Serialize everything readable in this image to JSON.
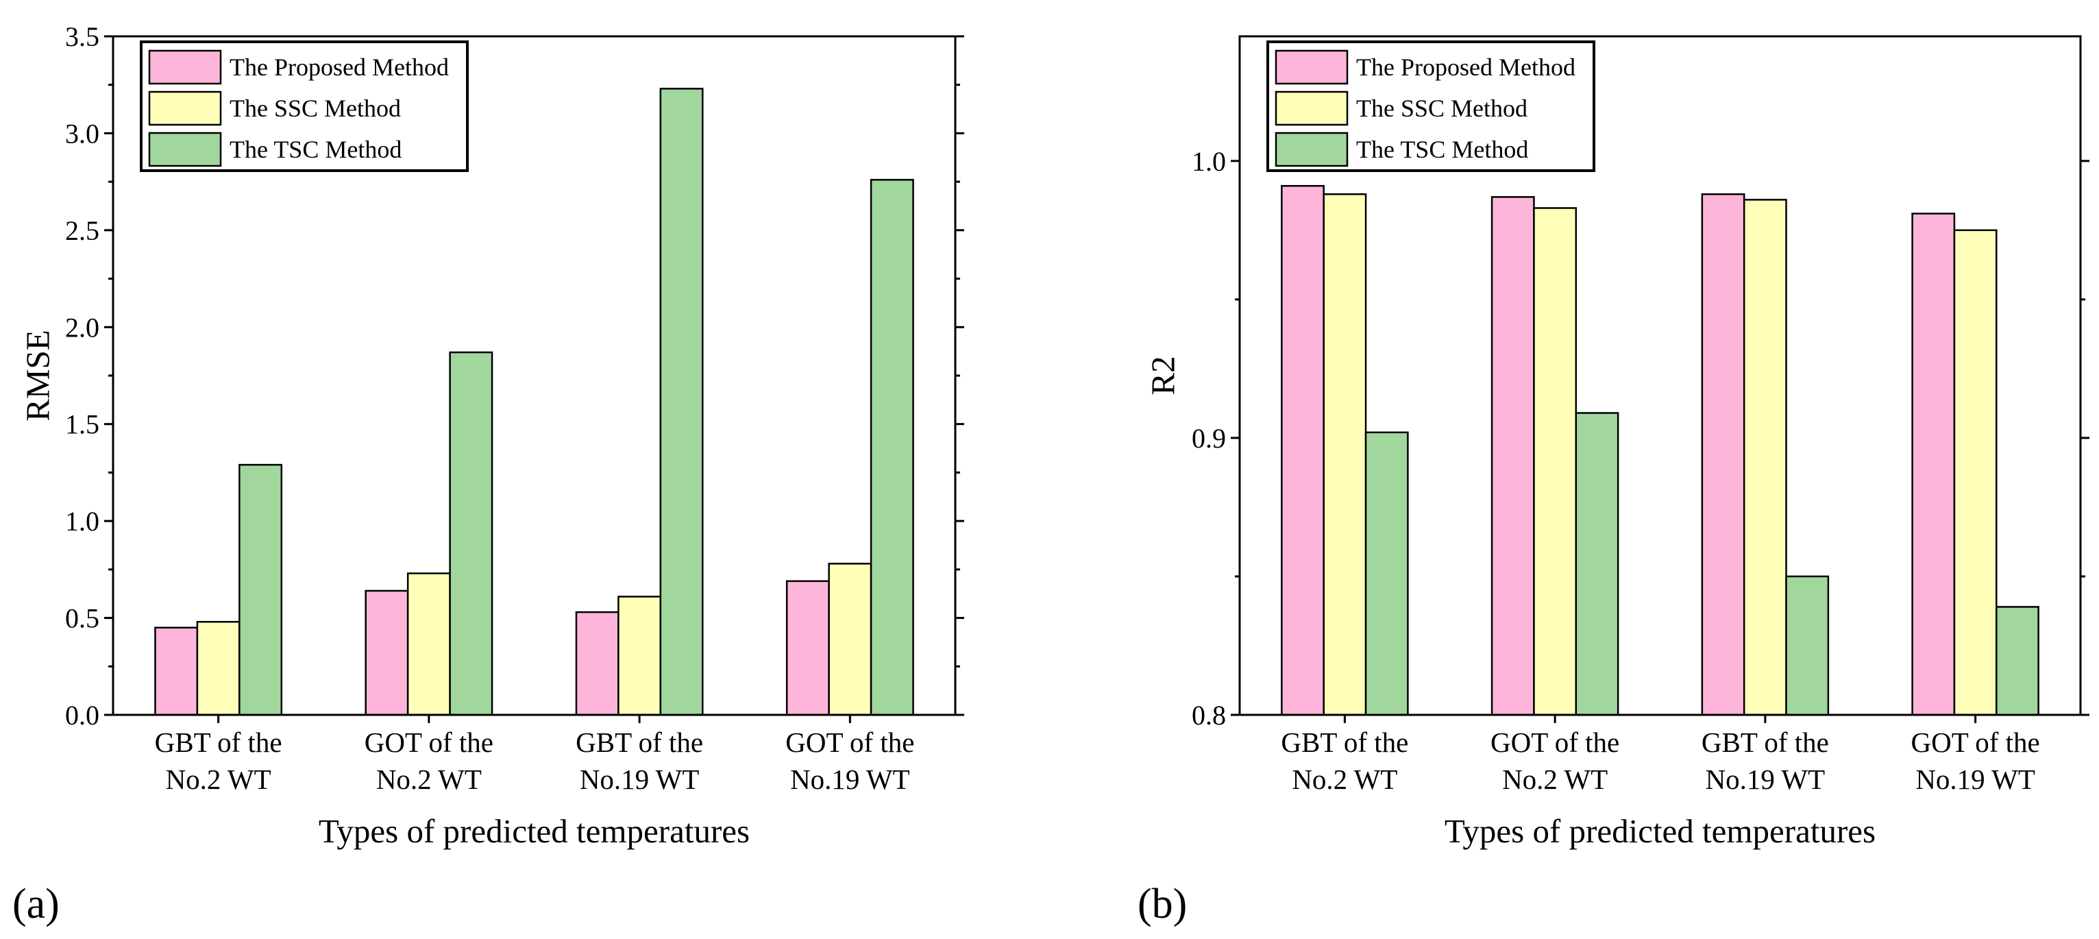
{
  "chart_data": [
    {
      "panel_label": "(a)",
      "type": "bar",
      "xlabel": "Types of predicted temperatures",
      "ylabel": "RMSE",
      "categories": [
        [
          "GBT of the",
          "No.2 WT"
        ],
        [
          "GOT of the",
          "No.2 WT"
        ],
        [
          "GBT of the",
          "No.19 WT"
        ],
        [
          "GOT of the",
          "No.19 WT"
        ]
      ],
      "series": [
        {
          "name": "The Proposed Method",
          "color": "#FDB5DA",
          "values": [
            0.45,
            0.64,
            0.53,
            0.69
          ]
        },
        {
          "name": "The SSC Method",
          "color": "#FFFFBA",
          "values": [
            0.48,
            0.73,
            0.61,
            0.78
          ]
        },
        {
          "name": "The TSC Method",
          "color": "#A1D79D",
          "values": [
            1.29,
            1.87,
            3.23,
            2.76
          ]
        }
      ],
      "ylim": [
        0,
        3.5
      ],
      "yticks": [
        0,
        0.5,
        1.0,
        1.5,
        2.0,
        2.5,
        3.0,
        3.5
      ],
      "ytick_labels": [
        "0.0",
        "0.5",
        "1.0",
        "1.5",
        "2.0",
        "2.5",
        "3.0",
        "3.5"
      ],
      "yminor_step": 0.25,
      "legend": "top-left",
      "grid": false
    },
    {
      "panel_label": "(b)",
      "type": "bar",
      "xlabel": "Types of predicted temperatures",
      "ylabel": "R2",
      "categories": [
        [
          "GBT of the",
          "No.2 WT"
        ],
        [
          "GOT of the",
          "No.2 WT"
        ],
        [
          "GBT of the",
          "No.19 WT"
        ],
        [
          "GOT of the",
          "No.19 WT"
        ]
      ],
      "series": [
        {
          "name": "The Proposed Method",
          "color": "#FDB5DA",
          "values": [
            0.991,
            0.987,
            0.988,
            0.981
          ]
        },
        {
          "name": "The SSC Method",
          "color": "#FFFFBA",
          "values": [
            0.988,
            0.983,
            0.986,
            0.975
          ]
        },
        {
          "name": "The TSC Method",
          "color": "#A1D79D",
          "values": [
            0.902,
            0.909,
            0.85,
            0.839
          ]
        }
      ],
      "ylim": [
        0.8,
        1.045
      ],
      "yticks": [
        0.8,
        0.9,
        1.0
      ],
      "ytick_labels": [
        "0.8",
        "0.9",
        "1.0"
      ],
      "yminor_step": 0.05,
      "legend": "top-left",
      "grid": false
    }
  ]
}
